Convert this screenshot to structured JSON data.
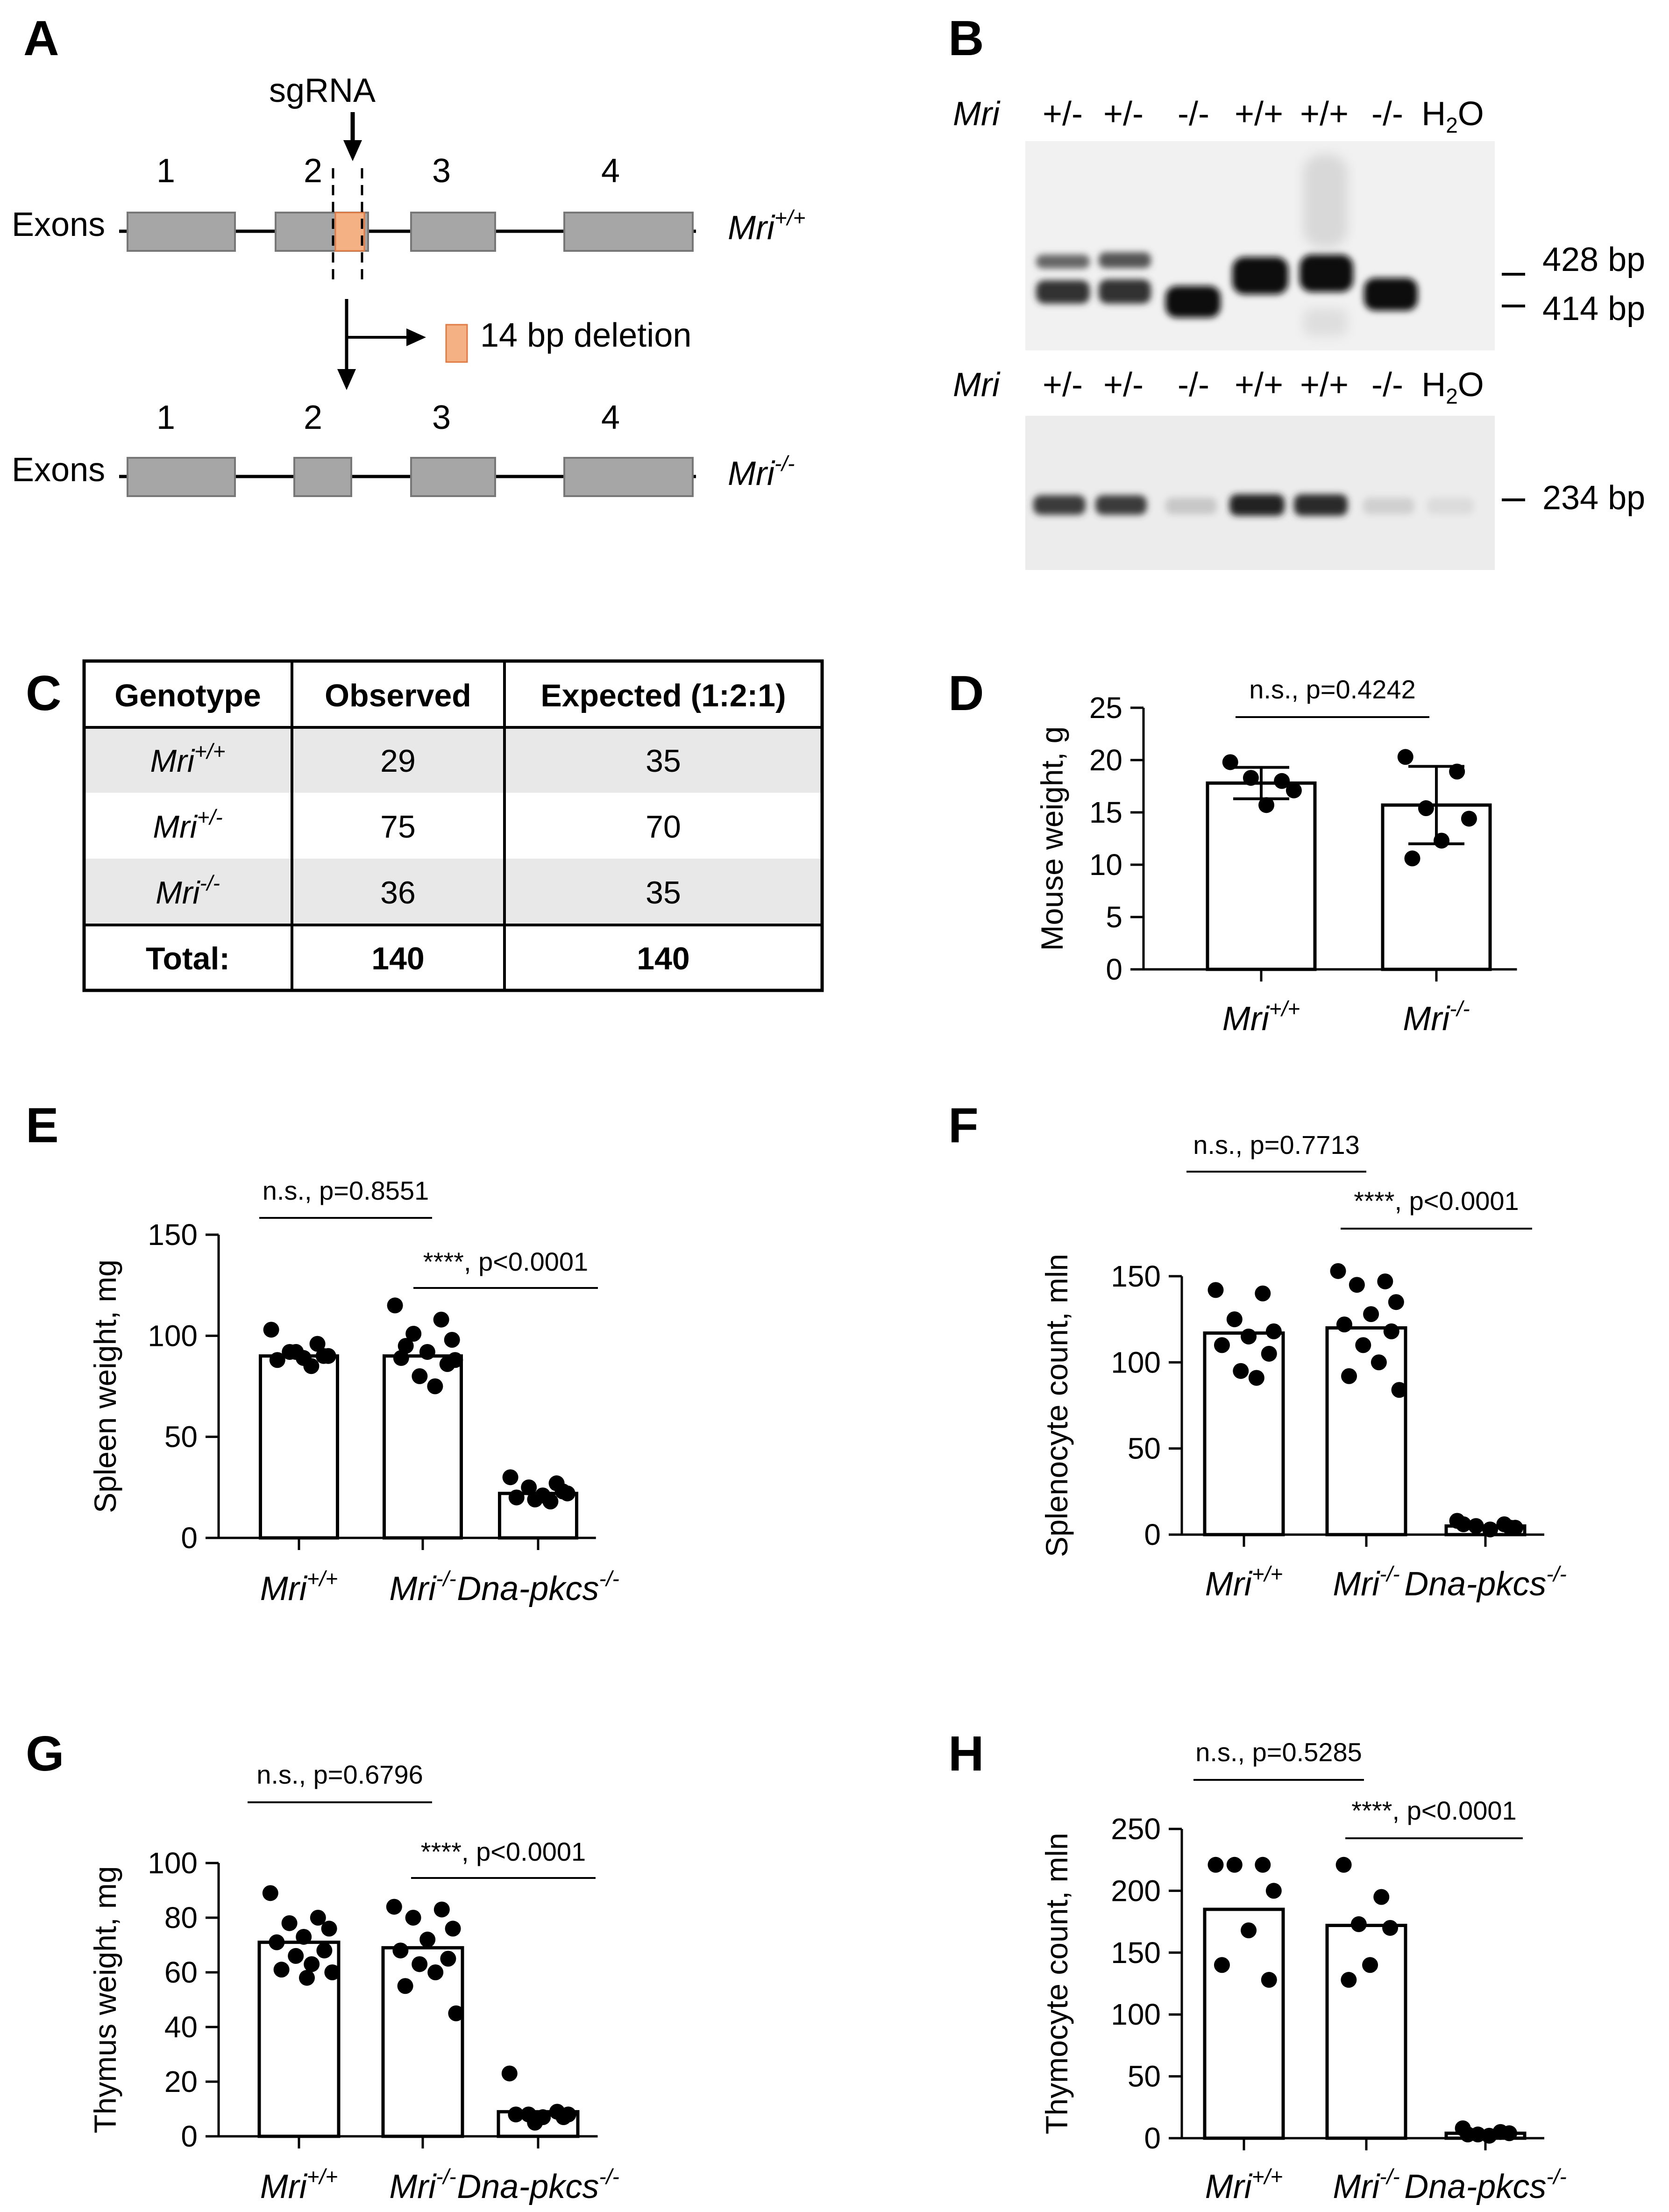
{
  "panels": {
    "A": {
      "letter": "A",
      "sgrna_label": "sgRNA",
      "exons_label": "Exons",
      "exon_numbers": [
        "1",
        "2",
        "3",
        "4"
      ],
      "deletion_label": "14 bp deletion",
      "wt_gene": "Mri",
      "wt_sup": "+/+",
      "ko_gene": "Mri",
      "ko_sup": "-/-",
      "exon_color": "#a6a6a6",
      "deletion_color": "#f4b183"
    },
    "B": {
      "letter": "B",
      "row_label": "Mri",
      "lanes": [
        "+/-",
        "+/-",
        "-/-",
        "+/+",
        "+/+",
        "-/-",
        "H2O"
      ],
      "top_bands": [
        "428 bp",
        "414 bp"
      ],
      "bottom_band": "234 bp"
    },
    "C": {
      "letter": "C",
      "headers": [
        "Genotype",
        "Observed",
        "Expected (1:2:1)"
      ],
      "rows": [
        {
          "gene": "Mri",
          "sup": "+/+",
          "observed": "29",
          "expected": "35"
        },
        {
          "gene": "Mri",
          "sup": "+/-",
          "observed": "75",
          "expected": "70"
        },
        {
          "gene": "Mri",
          "sup": "-/-",
          "observed": "36",
          "expected": "35"
        }
      ],
      "total": {
        "label": "Total:",
        "observed": "140",
        "expected": "140"
      },
      "shade_color": "#e8e8e8"
    }
  },
  "chart_data": [
    {
      "id": "D",
      "letter": "D",
      "type": "bar",
      "ylabel": "Mouse weight, g",
      "ylim": [
        0,
        25
      ],
      "yticks": [
        0,
        5,
        10,
        15,
        20,
        25
      ],
      "categories": [
        {
          "gene": "Mri",
          "sup": "+/+"
        },
        {
          "gene": "Mri",
          "sup": "-/-"
        }
      ],
      "values": [
        17.8,
        15.7
      ],
      "errors": [
        1.5,
        3.7
      ],
      "points": [
        [
          19.8,
          18.0,
          18.3,
          17.1,
          15.7
        ],
        [
          20.3,
          18.9,
          15.4,
          14.4,
          12.3,
          10.6
        ]
      ],
      "significance": [
        {
          "from": 0,
          "to": 1,
          "label": "n.s., p=0.4242"
        }
      ]
    },
    {
      "id": "E",
      "letter": "E",
      "type": "bar",
      "ylabel": "Spleen weight, mg",
      "ylim": [
        0,
        150
      ],
      "yticks": [
        0,
        50,
        100,
        150
      ],
      "categories": [
        {
          "gene": "Mri",
          "sup": "+/+"
        },
        {
          "gene": "Mri",
          "sup": "-/-"
        },
        {
          "gene": "Dna-pkcs",
          "sup": "-/-"
        }
      ],
      "values": [
        90,
        90,
        22
      ],
      "points": [
        [
          103,
          96,
          92,
          90,
          89,
          88,
          90,
          92,
          85
        ],
        [
          115,
          108,
          101,
          98,
          92,
          89,
          86,
          80,
          75,
          95,
          88
        ],
        [
          30,
          27,
          25,
          22,
          21,
          20,
          23,
          19,
          18
        ]
      ],
      "significance": [
        {
          "from": 0,
          "to": 1,
          "label": "n.s., p=0.8551"
        },
        {
          "from": 1,
          "to": 2,
          "label": "****, p<0.0001"
        }
      ]
    },
    {
      "id": "F",
      "letter": "F",
      "type": "bar",
      "ylabel": "Splenocyte count, mln",
      "ylim": [
        0,
        160
      ],
      "yticks": [
        0,
        50,
        100,
        150
      ],
      "categories": [
        {
          "gene": "Mri",
          "sup": "+/+"
        },
        {
          "gene": "Mri",
          "sup": "-/-"
        },
        {
          "gene": "Dna-pkcs",
          "sup": "-/-"
        }
      ],
      "values": [
        117,
        120,
        5
      ],
      "points": [
        [
          142,
          140,
          125,
          118,
          115,
          110,
          105,
          95,
          91
        ],
        [
          153,
          147,
          145,
          135,
          128,
          122,
          118,
          110,
          100,
          92,
          84
        ],
        [
          8,
          6,
          5,
          4,
          3,
          6,
          4
        ]
      ],
      "significance": [
        {
          "from": 0,
          "to": 1,
          "label": "n.s., p=0.7713"
        },
        {
          "from": 1,
          "to": 2,
          "label": "****, p<0.0001"
        }
      ]
    },
    {
      "id": "G",
      "letter": "G",
      "type": "bar",
      "ylabel": "Thymus weight, mg",
      "ylim": [
        0,
        100
      ],
      "yticks": [
        0,
        20,
        40,
        60,
        80,
        100
      ],
      "categories": [
        {
          "gene": "Mri",
          "sup": "+/+"
        },
        {
          "gene": "Mri",
          "sup": "-/-"
        },
        {
          "gene": "Dna-pkcs",
          "sup": "-/-"
        }
      ],
      "values": [
        71,
        69,
        9
      ],
      "points": [
        [
          89,
          80,
          78,
          76,
          73,
          71,
          68,
          66,
          63,
          61,
          60,
          58
        ],
        [
          84,
          83,
          80,
          76,
          72,
          68,
          65,
          63,
          60,
          55,
          45
        ],
        [
          23,
          9,
          8,
          8,
          7,
          8,
          7,
          5
        ]
      ],
      "significance": [
        {
          "from": 0,
          "to": 1,
          "label": "n.s., p=0.6796"
        },
        {
          "from": 1,
          "to": 2,
          "label": "****, p<0.0001"
        }
      ]
    },
    {
      "id": "H",
      "letter": "H",
      "type": "bar",
      "ylabel": "Thymocyte count, mln",
      "ylim": [
        0,
        250
      ],
      "yticks": [
        0,
        50,
        100,
        150,
        200,
        250
      ],
      "categories": [
        {
          "gene": "Mri",
          "sup": "+/+"
        },
        {
          "gene": "Mri",
          "sup": "-/-"
        },
        {
          "gene": "Dna-pkcs",
          "sup": "-/-"
        }
      ],
      "values": [
        185,
        172,
        4
      ],
      "points": [
        [
          221,
          221,
          221,
          200,
          168,
          140,
          128
        ],
        [
          221,
          195,
          173,
          170,
          140,
          128
        ],
        [
          8,
          5,
          3,
          4,
          2,
          3
        ]
      ],
      "significance": [
        {
          "from": 0,
          "to": 1,
          "label": "n.s., p=0.5285"
        },
        {
          "from": 1,
          "to": 2,
          "label": "****, p<0.0001"
        }
      ]
    }
  ]
}
